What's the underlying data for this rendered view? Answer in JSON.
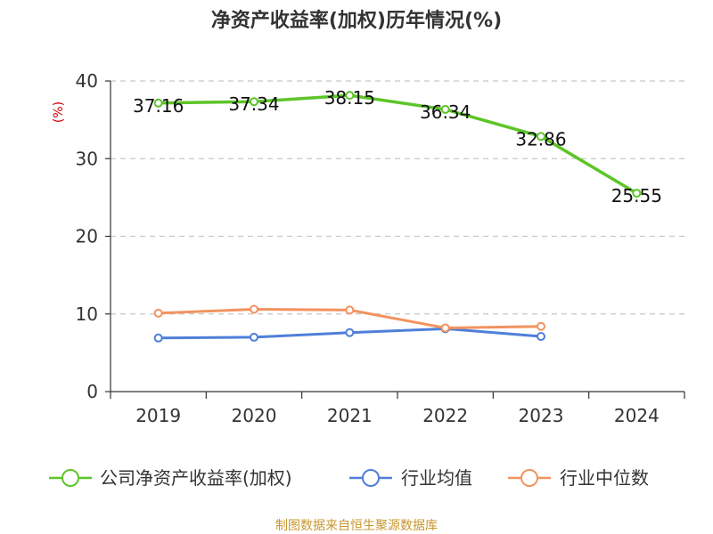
{
  "chart_data": {
    "type": "line",
    "title": "净资产收益率(加权)历年情况(%)",
    "ylabel": "(%)",
    "xlabel": "",
    "categories": [
      "2019",
      "2020",
      "2021",
      "2022",
      "2023",
      "2024"
    ],
    "ylim": [
      0,
      40
    ],
    "yticks": [
      0,
      10,
      20,
      30,
      40
    ],
    "grid": true,
    "legend_position": "bottom",
    "series": [
      {
        "name": "公司净资产收益率(加权)",
        "color": "#5cc528",
        "values": [
          37.16,
          37.34,
          38.15,
          36.34,
          32.86,
          25.55
        ],
        "labels": [
          "37.16",
          "37.34",
          "38.15",
          "36.34",
          "32.86",
          "25.55"
        ]
      },
      {
        "name": "行业均值",
        "color": "#4f7fd9",
        "values": [
          6.9,
          7.0,
          7.6,
          8.1,
          7.1,
          null
        ]
      },
      {
        "name": "行业中位数",
        "color": "#f2935e",
        "values": [
          10.1,
          10.6,
          10.5,
          8.2,
          8.4,
          null
        ]
      }
    ],
    "source": "制图数据来自恒生聚源数据库"
  }
}
